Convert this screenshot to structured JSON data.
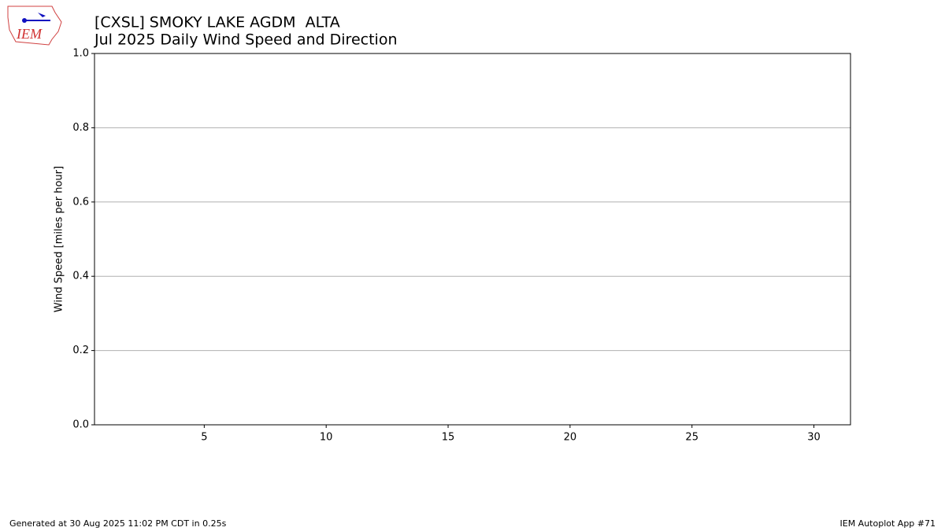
{
  "chart_data": {
    "type": "bar",
    "title": "[CXSL] SMOKY LAKE AGDM  ALTA",
    "subtitle": "Jul 2025 Daily Wind Speed and Direction",
    "ylabel": "Wind Speed [miles per hour]",
    "xlim": [
      0.5,
      31.5
    ],
    "xticks": [
      5,
      10,
      15,
      20,
      25,
      30
    ],
    "ylim": [
      0,
      1
    ],
    "yticks": [
      {
        "value": 0,
        "label": "0.0"
      },
      {
        "value": 0.2,
        "label": "0.2"
      },
      {
        "value": 0.4,
        "label": "0.4"
      },
      {
        "value": 0.6,
        "label": "0.6"
      },
      {
        "value": 0.8,
        "label": "0.8"
      },
      {
        "value": 1,
        "label": "1.0"
      }
    ],
    "grid": true
  },
  "logo": {
    "text": "IEM"
  },
  "footer": {
    "left": "Generated at 30 Aug 2025 11:02 PM CDT in 0.25s",
    "right": "IEM Autoplot App #71"
  }
}
